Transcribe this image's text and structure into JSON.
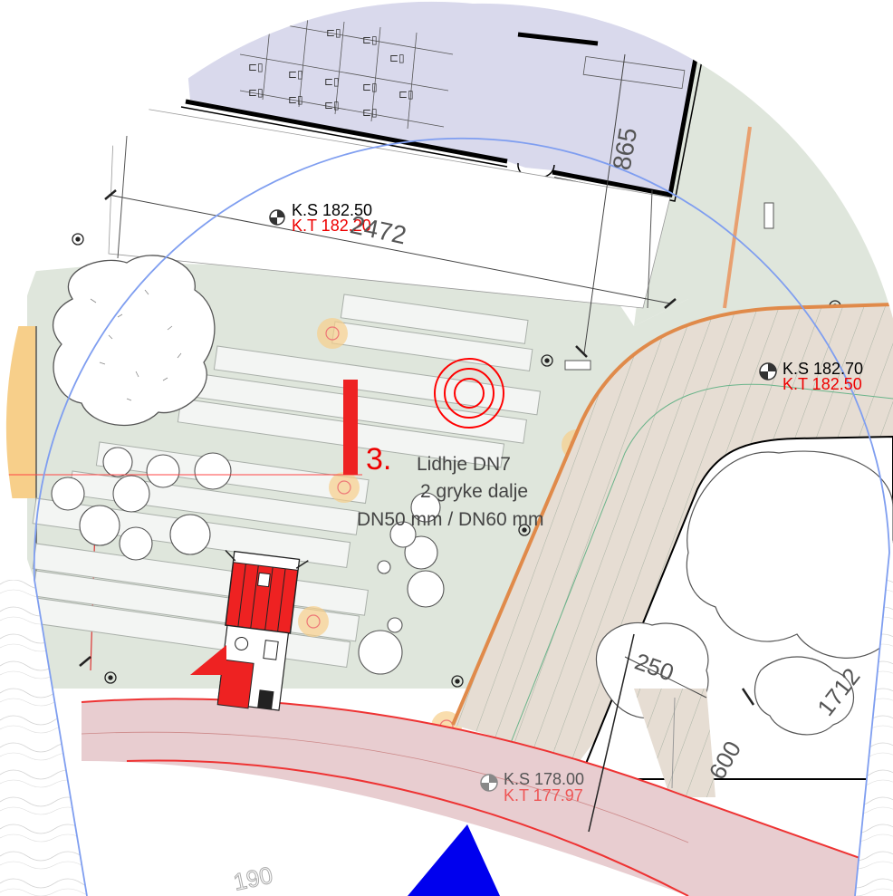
{
  "plan": {
    "elevations": [
      {
        "ks": "K.S 182.50",
        "kt": "K.T 182.20"
      },
      {
        "ks": "K.S 182.70",
        "kt": "K.T 182.50"
      },
      {
        "ks": "K.S 178.00",
        "kt": "K.T 177.97"
      }
    ],
    "dimensions": {
      "d2472": "2472",
      "d865": "865",
      "d250": "250",
      "d600": "600",
      "d1712": "1712"
    },
    "marker": {
      "number": "3.",
      "line1": "Lidhje DN7",
      "line2": "2 gryke dalje",
      "line3": "DN50 mm / DN60 mm"
    },
    "contour_label": "190",
    "colors": {
      "building": "#d9d9ec",
      "lawn": "#dfe6dc",
      "road": "#e6c9cc",
      "hatch": "#e3dcd2",
      "red": "#ff0000",
      "orange": "#f4c08f",
      "blue": "#0000ee",
      "frame": "#7f9ef0"
    }
  }
}
